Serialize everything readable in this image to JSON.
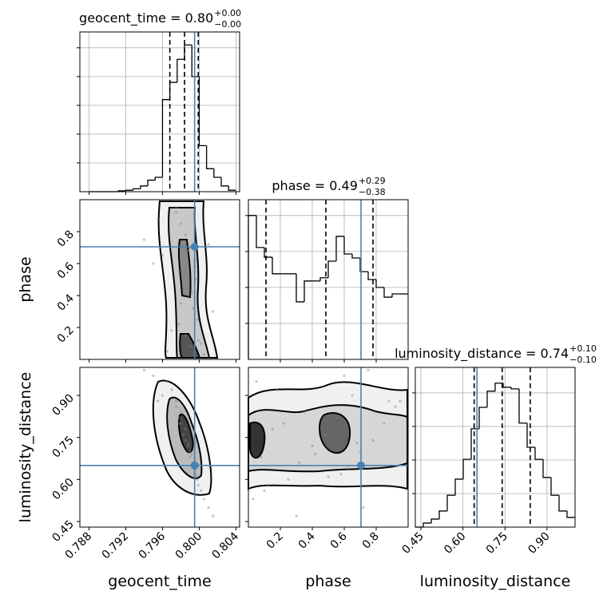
{
  "chart_data": [
    {
      "type": "histogram",
      "title": "geocent_time = 0.80",
      "title_upper": "+0.00",
      "title_lower": "−0.00",
      "bins": [
        0.788,
        0.7888,
        0.7896,
        0.7904,
        0.7912,
        0.792,
        0.7928,
        0.7936,
        0.7944,
        0.7952,
        0.796,
        0.7968,
        0.7976,
        0.7984,
        0.7992,
        0.8,
        0.8008,
        0.8016,
        0.8024,
        0.8032,
        0.804
      ],
      "values": [
        0,
        0,
        0,
        0,
        0.3,
        0.5,
        1,
        2,
        4,
        5,
        32,
        38,
        46,
        51,
        40,
        16,
        8,
        5,
        2,
        0.5
      ],
      "xlim": [
        0.787,
        0.8044
      ],
      "ylim": [
        0,
        55.5
      ],
      "xticks": [
        0.788,
        0.792,
        0.796,
        0.8,
        0.804
      ],
      "yticks": [
        10,
        20,
        30,
        40,
        50
      ],
      "grid": true,
      "color": "#000000",
      "quantiles": [
        0.7968,
        0.7984,
        0.7999
      ],
      "truth": 0.7995,
      "truth_color": "#4682b4"
    },
    {
      "type": "scatter",
      "ylabel": "phase",
      "x": [
        0.7975,
        0.798,
        0.7985,
        0.799,
        0.7995,
        0.7978,
        0.7983,
        0.7988,
        0.7993,
        0.7998,
        0.797,
        0.8002,
        0.7965,
        0.8005,
        0.796,
        0.801,
        0.7955,
        0.7985,
        0.799,
        0.798,
        0.7995,
        0.7988,
        0.7992,
        0.7975,
        0.7999,
        0.795,
        0.8015,
        0.794,
        0.7978,
        0.7996
      ],
      "values": [
        0.92,
        0.85,
        0.78,
        0.7,
        0.62,
        0.55,
        0.48,
        0.4,
        0.32,
        0.25,
        0.18,
        0.1,
        0.05,
        0.03,
        0.65,
        0.72,
        0.88,
        0.15,
        0.08,
        0.35,
        0.58,
        0.68,
        0.42,
        0.95,
        0.12,
        0.6,
        0.3,
        0.75,
        0.22,
        0.5
      ],
      "xlim": [
        0.787,
        0.8044
      ],
      "ylim": [
        0,
        1
      ],
      "xticks": [
        0.788,
        0.792,
        0.796,
        0.8,
        0.804
      ],
      "yticks": [
        0.2,
        0.4,
        0.6,
        0.8
      ],
      "color": "#808080",
      "truth_x": 0.7995,
      "truth_y": 0.705,
      "truth_color": "#4682b4"
    },
    {
      "type": "histogram",
      "title": "phase = 0.49",
      "title_upper": "+0.29",
      "title_lower": "−0.38",
      "bins": [
        0,
        0.05,
        0.1,
        0.15,
        0.2,
        0.25,
        0.3,
        0.35,
        0.4,
        0.45,
        0.5,
        0.55,
        0.6,
        0.65,
        0.7,
        0.75,
        0.8,
        0.85,
        0.9,
        0.95,
        1
      ],
      "values": [
        400,
        311,
        284,
        238,
        238,
        238,
        160,
        218,
        218,
        227,
        273,
        342,
        293,
        282,
        244,
        222,
        200,
        173,
        182,
        182
      ],
      "xlim": [
        0,
        1
      ],
      "ylim": [
        0,
        444
      ],
      "xticks": [
        0.2,
        0.4,
        0.6,
        0.8
      ],
      "yticks": [
        100,
        200,
        300,
        400
      ],
      "grid": true,
      "color": "#000000",
      "quantiles": [
        0.11,
        0.485,
        0.78
      ],
      "truth": 0.705,
      "truth_color": "#4682b4"
    },
    {
      "type": "scatter",
      "xlabel": "geocent_time",
      "ylabel": "luminosity_distance",
      "x": [
        0.7975,
        0.798,
        0.7985,
        0.799,
        0.7995,
        0.7978,
        0.7983,
        0.7988,
        0.7993,
        0.7998,
        0.797,
        0.8002,
        0.7965,
        0.8005,
        0.796,
        0.801,
        0.7955,
        0.7985,
        0.799,
        0.798,
        0.7995,
        0.7988,
        0.7992,
        0.7975,
        0.7999,
        0.795,
        0.8015,
        0.794,
        0.7978,
        0.7996
      ],
      "values": [
        0.86,
        0.8,
        0.74,
        0.7,
        0.64,
        0.82,
        0.76,
        0.72,
        0.66,
        0.6,
        0.92,
        0.56,
        0.95,
        0.53,
        0.9,
        0.5,
        0.88,
        0.78,
        0.68,
        0.84,
        0.62,
        0.73,
        0.69,
        0.88,
        0.58,
        0.97,
        0.47,
        0.99,
        0.8,
        0.61
      ],
      "xlim": [
        0.787,
        0.8044
      ],
      "ylim": [
        0.43,
        1.0
      ],
      "xticks": [
        0.788,
        0.792,
        0.796,
        {
          "value": 0.8,
          "label": "0.800"
        },
        0.804
      ],
      "yticks": [
        0.45,
        {
          "value": 0.6,
          "label": "0.60"
        },
        0.75,
        {
          "value": 0.9,
          "label": "0.90"
        }
      ],
      "color": "#808080",
      "truth_x": 0.7995,
      "truth_y": 0.65,
      "truth_color": "#4682b4"
    },
    {
      "type": "scatter",
      "xlabel": "phase",
      "x": [
        0.92,
        0.85,
        0.78,
        0.7,
        0.62,
        0.55,
        0.48,
        0.4,
        0.32,
        0.25,
        0.18,
        0.1,
        0.05,
        0.03,
        0.65,
        0.72,
        0.88,
        0.15,
        0.08,
        0.35,
        0.58,
        0.68,
        0.42,
        0.95,
        0.12,
        0.6,
        0.3,
        0.75,
        0.22,
        0.5
      ],
      "values": [
        0.86,
        0.8,
        0.74,
        0.7,
        0.64,
        0.82,
        0.76,
        0.72,
        0.66,
        0.6,
        0.92,
        0.56,
        0.95,
        0.53,
        0.9,
        0.5,
        0.88,
        0.78,
        0.68,
        0.84,
        0.62,
        0.73,
        0.69,
        0.88,
        0.58,
        0.97,
        0.47,
        0.99,
        0.8,
        0.61
      ],
      "xlim": [
        0,
        1
      ],
      "ylim": [
        0.43,
        1.0
      ],
      "xticks": [
        0.2,
        0.4,
        0.6,
        0.8
      ],
      "yticks": [
        0.45,
        0.6,
        0.75,
        0.9
      ],
      "color": "#808080",
      "truth_x": 0.705,
      "truth_y": 0.65,
      "truth_color": "#4682b4"
    },
    {
      "type": "histogram",
      "title": "luminosity_distance = 0.74",
      "title_upper": "+0.10",
      "title_lower": "−0.10",
      "xlabel": "luminosity_distance",
      "bins": [
        0.43,
        0.4585,
        0.487,
        0.5155,
        0.544,
        0.5725,
        0.601,
        0.6295,
        0.658,
        0.6865,
        0.715,
        0.7435,
        0.772,
        0.8005,
        0.829,
        0.8575,
        0.886,
        0.9145,
        0.943,
        0.9715,
        1.0
      ],
      "values": [
        0,
        12,
        24,
        48,
        95,
        143,
        202,
        293,
        357,
        405,
        429,
        417,
        412,
        310,
        238,
        202,
        148,
        95,
        48,
        29
      ],
      "xlim": [
        0.43,
        1.0
      ],
      "ylim": [
        0,
        476
      ],
      "xticks": [
        0.45,
        {
          "value": 0.6,
          "label": "0.60"
        },
        0.75,
        {
          "value": 0.9,
          "label": "0.90"
        }
      ],
      "yticks": [
        100,
        200,
        300,
        400
      ],
      "grid": true,
      "color": "#000000",
      "quantiles": [
        0.64,
        0.74,
        0.84
      ],
      "truth": 0.65,
      "truth_color": "#4682b4"
    }
  ]
}
